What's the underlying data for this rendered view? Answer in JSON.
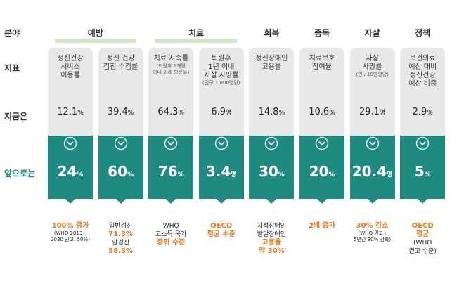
{
  "row_labels": {
    "field": "분야",
    "indicator": "지표",
    "now": "지금은",
    "future": "앞으로는"
  },
  "groups": [
    {
      "label": "예방",
      "span": 2,
      "underline": true
    },
    {
      "label": "치료",
      "span": 2,
      "underline": true
    },
    {
      "label": "회복",
      "span": 1,
      "underline": false
    },
    {
      "label": "중독",
      "span": 1,
      "underline": false
    },
    {
      "label": "자살",
      "span": 1,
      "underline": false
    },
    {
      "label": "정책",
      "span": 1,
      "underline": false
    }
  ],
  "columns": [
    {
      "indicator": [
        "정신건강",
        "서비스",
        "이용률"
      ],
      "indicator_note": [],
      "now": {
        "value": "12.1",
        "unit": "%"
      },
      "future": {
        "value": "24",
        "unit": "%"
      },
      "notes": [
        {
          "text": "100% 증가",
          "accent": true
        },
        {
          "text": "(WHO 2013~",
          "small": true
        },
        {
          "text": "2030 권고: 50%)",
          "small": true
        }
      ]
    },
    {
      "indicator": [
        "정신 건강",
        "검진 수검률"
      ],
      "indicator_note": [],
      "now": {
        "value": "39.4",
        "unit": "%"
      },
      "future": {
        "value": "60",
        "unit": "%"
      },
      "notes": [
        {
          "text": "일반검진"
        },
        {
          "text": "71.3%",
          "accent": true
        },
        {
          "text": "암검진"
        },
        {
          "text": "58.3%",
          "accent": true
        }
      ]
    },
    {
      "indicator": [
        "치료 지속률"
      ],
      "indicator_note": [
        "(퇴원후 1개월",
        "이내 외래 방문율)"
      ],
      "now": {
        "value": "64.3",
        "unit": "%"
      },
      "future": {
        "value": "76",
        "unit": "%"
      },
      "notes": [
        {
          "text": "WHO"
        },
        {
          "text": "고소득 국가"
        },
        {
          "text": "중위 수준",
          "accent": true
        }
      ]
    },
    {
      "indicator": [
        "퇴원후",
        "1년 이내",
        "자살 사망률"
      ],
      "indicator_note": [
        "(인구 1,000명당)"
      ],
      "now": {
        "value": "6.9",
        "unit": "명"
      },
      "future": {
        "value": "3.4",
        "unit": "명"
      },
      "notes": [
        {
          "text": "OECD",
          "accent": true
        },
        {
          "text": "평균 수준",
          "accent": true
        }
      ]
    },
    {
      "indicator": [
        "정신장애인",
        "고용률"
      ],
      "indicator_note": [],
      "now": {
        "value": "14.8",
        "unit": "%"
      },
      "future": {
        "value": "30",
        "unit": "%"
      },
      "notes": [
        {
          "text": "지적장애인"
        },
        {
          "text": "발달장애인"
        },
        {
          "text": "고용률",
          "accent": true
        },
        {
          "text": "약 30%",
          "accent": true
        }
      ]
    },
    {
      "indicator": [
        "치료보호",
        "참여율"
      ],
      "indicator_note": [],
      "now": {
        "value": "10.6",
        "unit": "%"
      },
      "future": {
        "value": "20",
        "unit": "%"
      },
      "notes": [
        {
          "text": "2배 증가",
          "accent": true
        }
      ]
    },
    {
      "indicator": [
        "자살",
        "사망률"
      ],
      "indicator_note": [
        "(인구10만명당)"
      ],
      "now": {
        "value": "29.1",
        "unit": "명"
      },
      "future": {
        "value": "20.4",
        "unit": "명"
      },
      "notes": [
        {
          "text": "30% 감소",
          "accent": true
        },
        {
          "text": "(WHO 권고 :",
          "small": true
        },
        {
          "text": "5년간 30% 감축)",
          "small": true
        }
      ]
    },
    {
      "indicator": [
        "보건의료",
        "예산 대비",
        "정신건강",
        "예산 비중"
      ],
      "indicator_note": [],
      "now": {
        "value": "2.9",
        "unit": "%"
      },
      "future": {
        "value": "5",
        "unit": "%"
      },
      "notes": [
        {
          "text": "OECD",
          "accent": true
        },
        {
          "text": "평균",
          "accent": true
        },
        {
          "text": "(WHO"
        },
        {
          "text": "권고 수준)"
        }
      ]
    }
  ]
}
